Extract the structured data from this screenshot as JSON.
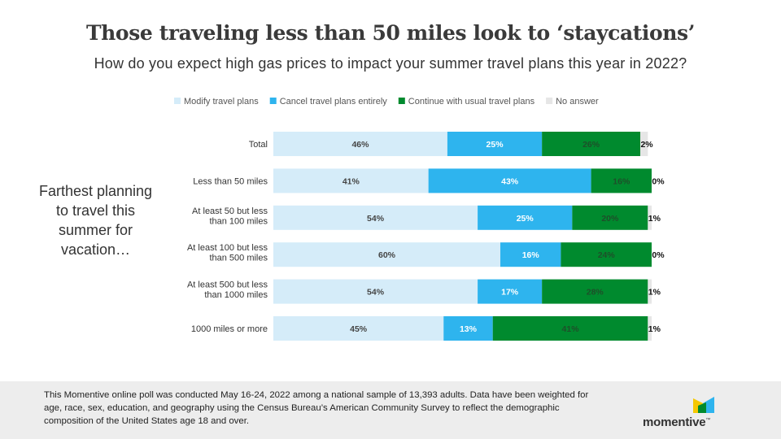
{
  "title": "Those traveling less than 50 miles look to ‘staycations’",
  "subtitle": "How do you expect high gas prices to impact your summer travel plans this year in 2022?",
  "side_label": "Farthest planning to travel this summer for vacation…",
  "footnote": "This Momentive online poll was conducted May 16-24, 2022 among a national sample of 13,393 adults. Data have been weighted for age, race, sex, education, and geography using the Census Bureau’s American Community Survey to reflect the demographic composition of the United States age 18 and over.",
  "logo": {
    "text": "momentive",
    "mark": "™",
    "name": "momentive-logo"
  },
  "chart_data": {
    "type": "bar",
    "orientation": "horizontal",
    "stacked": true,
    "title": "How do you expect high gas prices to impact your summer travel plans this year in 2022?",
    "categories": [
      "Total",
      "Less than 50 miles",
      "At least 50 but less than 100 miles",
      "At least 100 but less than 500 miles",
      "At least 500 but less than 1000 miles",
      "1000 miles or more"
    ],
    "category_lines": [
      [
        "Total"
      ],
      [
        "Less than 50 miles"
      ],
      [
        "At least 50 but less",
        "than 100 miles"
      ],
      [
        "At least 100 but less",
        "than 500 miles"
      ],
      [
        "At least 500 but less",
        "than 1000 miles"
      ],
      [
        "1000 miles or more"
      ]
    ],
    "series": [
      {
        "name": "Modify travel plans",
        "color": "#d5ecf9",
        "label_color": "#444444",
        "values": [
          46,
          41,
          54,
          60,
          54,
          45
        ]
      },
      {
        "name": "Cancel travel plans entirely",
        "color": "#2eb4ee",
        "label_color": "#ffffff",
        "values": [
          25,
          43,
          25,
          16,
          17,
          13
        ]
      },
      {
        "name": "Continue with usual travel plans",
        "color": "#008a2e",
        "label_color": "#1e4f2a",
        "values": [
          26,
          16,
          20,
          24,
          28,
          41
        ]
      },
      {
        "name": "No answer",
        "color": "#e6e6e6",
        "label_color": "#111111",
        "values": [
          2,
          0,
          1,
          0,
          1,
          1
        ]
      }
    ],
    "xlim": [
      0,
      100
    ],
    "legend": "top",
    "value_suffix": "%"
  }
}
